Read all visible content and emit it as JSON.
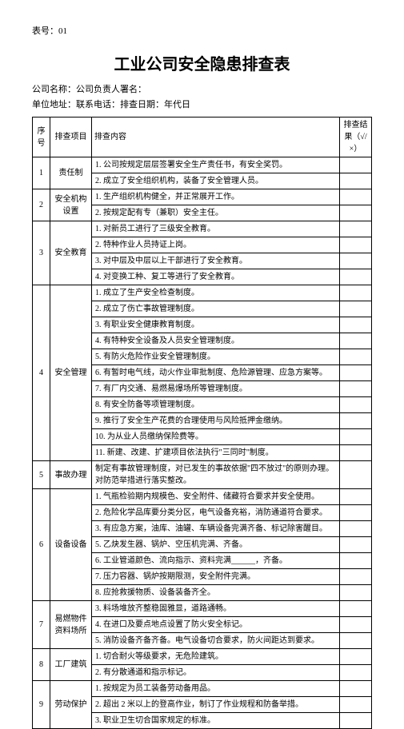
{
  "header": {
    "form_no_label": "表号：01"
  },
  "title": "工业公司安全隐患排查表",
  "info": {
    "line1": "公司名称：公司负责人署名：",
    "line2": "单位地址：联系电话：排查日期：年代日"
  },
  "columns": {
    "seq": "序号",
    "item": "排查项目",
    "content": "排查内容",
    "result": "排查结果（√/×）"
  },
  "rows": [
    {
      "seq": "1",
      "item": "责任制",
      "contents": [
        "1. 公司按规定层层签署安全生产责任书，有安全奖罚。",
        "2. 成立了安全组织机构，装备了安全管理人员。"
      ]
    },
    {
      "seq": "2",
      "item": "安全机构设置",
      "contents": [
        "1. 生产组织机构健全，并正常展开工作。",
        "2. 按规定配有专（兼职）安全主任。"
      ]
    },
    {
      "seq": "3",
      "item": "安全教育",
      "contents": [
        "1. 对新员工进行了三级安全教育。",
        "2. 特种作业人员持证上岗。",
        "3. 对中层及中层以上干部进行了安全教育。",
        "4. 对变换工种、复工等进行了安全教育。"
      ]
    },
    {
      "seq": "4",
      "item": "安全管理",
      "contents": [
        "1. 成立了生产安全检查制度。",
        "2. 成立了伤亡事故管理制度。",
        "3. 有职业安全健康教育制度。",
        "4. 有特种安全设备及人员安全管理制度。",
        "5. 有防火危险作业安全管理制度。",
        "6. 有暂时电气线，动火作业审批制度、危险源管理、应急方案等。",
        "7. 有厂内交通、易燃易爆场所等管理制度。",
        "8. 有安全防备等项管理制度。",
        "9. 推行了安全生产花费的合理使用与风险抵押金缴纳。",
        "10. 为从业人员缴纳保险费等。",
        "11. 新建、改建、扩建项目依法执行\"三同时\"制度。"
      ]
    },
    {
      "seq": "5",
      "item": "事故办理",
      "contents": [
        "制定有事故管理制度，对已发生的事故依据\"四不放过\"的原则办理。对防范举措进行落实整改。"
      ]
    },
    {
      "seq": "6",
      "item": "设备设备",
      "contents": [
        "1. 气瓶检验期内规模色、安全附件、储藏符合要求并安全使用。",
        "2. 危险化学品库要分类分区，电气设备充裕，消防通道符合要求。",
        "3. 有应急方案，油库、油罐、车辆设备完满齐备、标记除害醒目。",
        "5. 乙炔发生器、锅炉、空压机完满、齐备。",
        "6. 工业管道颜色、流向指示、资料完满______，齐备。",
        "7. 压力容器、锅炉按期限测，安全附件完满。",
        "8. 应抢救援物质、设备装备齐全。"
      ]
    },
    {
      "seq": "7",
      "item": "易燃物件资料场所",
      "contents": [
        "3. 料场堆放齐整稳固雅显，道路通畅。",
        "4. 在进口及要点地点设置了防火安全标记。",
        "5. 消防设备齐备齐备。电气设备切合要求，防火间距达到要求。"
      ]
    },
    {
      "seq": "8",
      "item": "工厂建筑",
      "contents": [
        "1. 切合耐火等级要求，无危险建筑。",
        "2. 有分散通道和指示标记。"
      ]
    },
    {
      "seq": "9",
      "item": "劳动保护",
      "contents": [
        "1. 按规定为员工装备劳动备用品。",
        "2. 超出 2 米以上的登高作业，制订了作业规程和防备举措。",
        "3. 职业卫生切合国家规定的标准。"
      ]
    }
  ]
}
